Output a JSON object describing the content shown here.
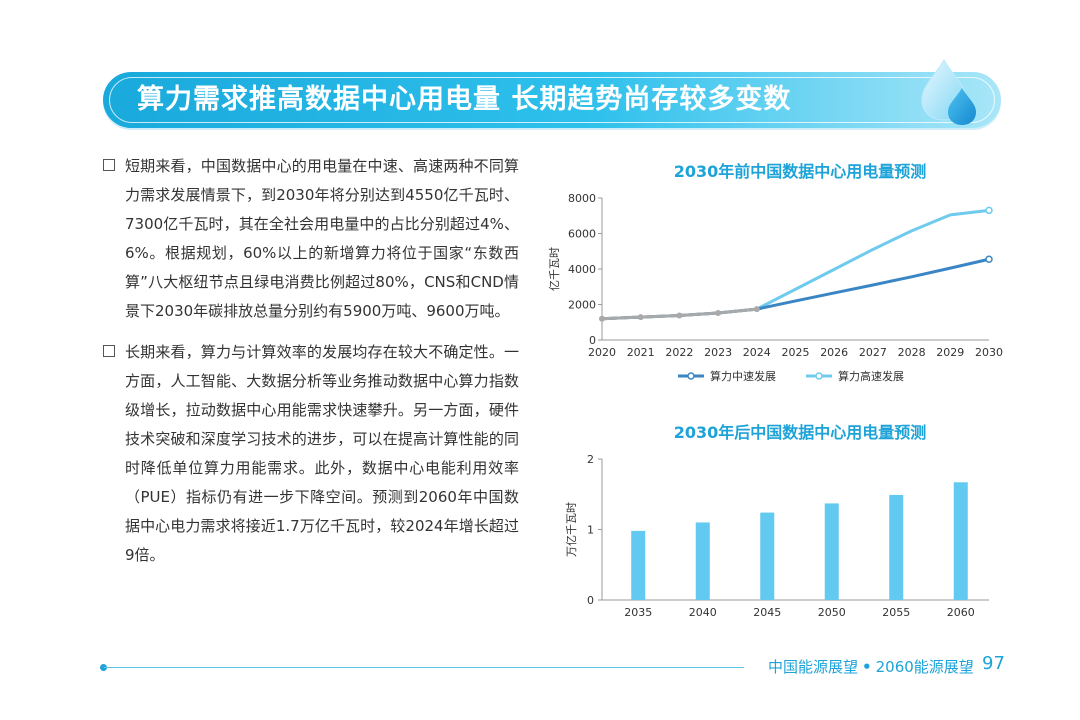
{
  "header": {
    "title": "算力需求推高数据中心用电量  长期趋势尚存较多变数"
  },
  "bullets": [
    {
      "text": "短期来看，中国数据中心的用电量在中速、高速两种不同算力需求发展情景下，到2030年将分别达到4550亿千瓦时、7300亿千瓦时，其在全社会用电量中的占比分别超过4%、6%。根据规划，60%以上的新增算力将位于国家“东数西算”八大枢纽节点且绿电消费比例超过80%，CNS和CND情景下2030年碳排放总量分别约有5900万吨、9600万吨。"
    },
    {
      "text": "长期来看，算力与计算效率的发展均存在较大不确定性。一方面，人工智能、大数据分析等业务推动数据中心算力指数级增长，拉动数据中心用能需求快速攀升。另一方面，硬件技术突破和深度学习技术的进步，可以在提高计算性能的同时降低单位算力用能需求。此外，数据中心电能利用效率（PUE）指标仍有进一步下降空间。预测到2060年中国数据中心电力需求将接近1.7万亿千瓦时，较2024年增长超过9倍。"
    }
  ],
  "chart_data": [
    {
      "type": "line",
      "title": "2030年前中国数据中心用电量预测",
      "ylabel": "亿千瓦时",
      "xlabel": "",
      "x": [
        2020,
        2021,
        2022,
        2023,
        2024,
        2025,
        2026,
        2027,
        2028,
        2029,
        2030
      ],
      "ylim": [
        0,
        8000
      ],
      "yticks": [
        0,
        2000,
        4000,
        6000,
        8000
      ],
      "legend_position": "bottom",
      "grid": false,
      "series": [
        {
          "name": "算力中速发展",
          "color": "#3a86c4",
          "values": [
            1200,
            1290,
            1380,
            1520,
            1740,
            2200,
            2650,
            3100,
            3560,
            4050,
            4550
          ]
        },
        {
          "name": "算力高速发展",
          "color": "#6fcbee",
          "values": [
            1200,
            1290,
            1380,
            1520,
            1740,
            2860,
            3980,
            5100,
            6150,
            7050,
            7300
          ]
        }
      ]
    },
    {
      "type": "bar",
      "title": "2030年后中国数据中心用电量预测",
      "ylabel": "万亿千瓦时",
      "xlabel": "",
      "categories": [
        "2035",
        "2040",
        "2045",
        "2050",
        "2055",
        "2060"
      ],
      "values": [
        0.98,
        1.1,
        1.24,
        1.37,
        1.49,
        1.67
      ],
      "ylim": [
        0,
        2
      ],
      "yticks": [
        0,
        1,
        2
      ],
      "color": "#62c9f0",
      "grid": false
    }
  ],
  "footer": {
    "left": "中国能源展望",
    "sep": "•",
    "right": "2060能源展望",
    "page": "97"
  }
}
